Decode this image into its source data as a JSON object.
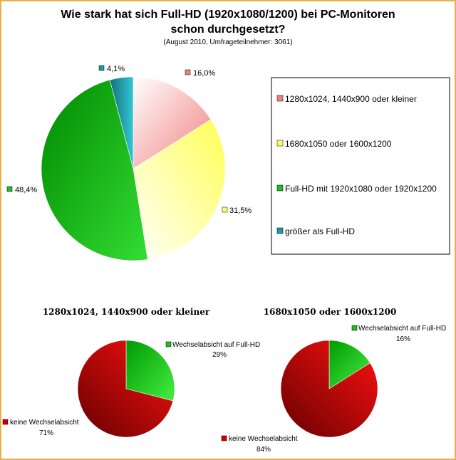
{
  "chart_data": [
    {
      "type": "pie",
      "title": "Wie stark hat sich Full-HD (1920x1080/1200) bei PC-Monitoren schon durchgesetzt?",
      "title_lines": [
        "Wie stark hat sich Full-HD (1920x1080/1200) bei PC-Monitoren",
        "schon durchgesetzt?"
      ],
      "subtitle": "(August 2010, Umfrageteilnehmer: 3061)",
      "legend_position": "right",
      "slices": [
        {
          "name": "1280x1024, 1440x900 oder kleiner",
          "value": 16.0,
          "label": "16,0%",
          "color": "#f08080"
        },
        {
          "name": "1680x1050 oder 1600x1200",
          "value": 31.5,
          "label": "31,5%",
          "color": "#ffff66"
        },
        {
          "name": "Full-HD mit 1920x1080 oder 1920x1200",
          "value": 48.4,
          "label": "48,4%",
          "color": "#22bb22"
        },
        {
          "name": "größer als Full-HD",
          "value": 4.1,
          "label": "4,1%",
          "color": "#1a9aa8"
        }
      ]
    },
    {
      "type": "pie",
      "title": "1280x1024, 1440x900 oder kleiner",
      "slices": [
        {
          "name": "Wechselabsicht auf Full-HD",
          "value": 29,
          "label": "29%",
          "color": "#22bb22"
        },
        {
          "name": "keine Wechselabsicht",
          "value": 71,
          "label": "71%",
          "color": "#cc0000"
        }
      ]
    },
    {
      "type": "pie",
      "title": "1680x1050 oder 1600x1200",
      "slices": [
        {
          "name": "Wechselabsicht auf Full-HD",
          "value": 16,
          "label": "16%",
          "color": "#22bb22"
        },
        {
          "name": "keine Wechselabsicht",
          "value": 84,
          "label": "84%",
          "color": "#cc0000"
        }
      ]
    }
  ]
}
